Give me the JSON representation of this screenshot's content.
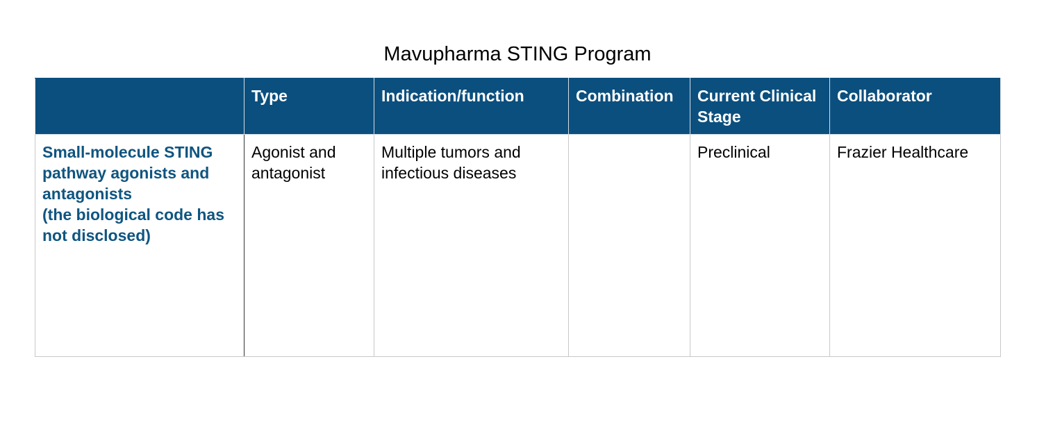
{
  "title": "Mavupharma STING Program",
  "colors": {
    "header_bg": "#0b4f7e",
    "header_text": "#ffffff",
    "row_head_text": "#0f5580",
    "border": "#c8c8c8"
  },
  "table": {
    "headers": [
      "",
      "Type",
      "Indication/function",
      "Combination",
      "Current Clinical Stage",
      "Collaborator"
    ],
    "rows": [
      {
        "program": "Small-molecule STING pathway agonists and antagonists\n(the biological code has not disclosed)",
        "type": "Agonist and antagonist",
        "indication": "Multiple tumors and infectious diseases",
        "combination": "",
        "stage": "Preclinical",
        "collaborator": "Frazier Healthcare"
      }
    ]
  }
}
